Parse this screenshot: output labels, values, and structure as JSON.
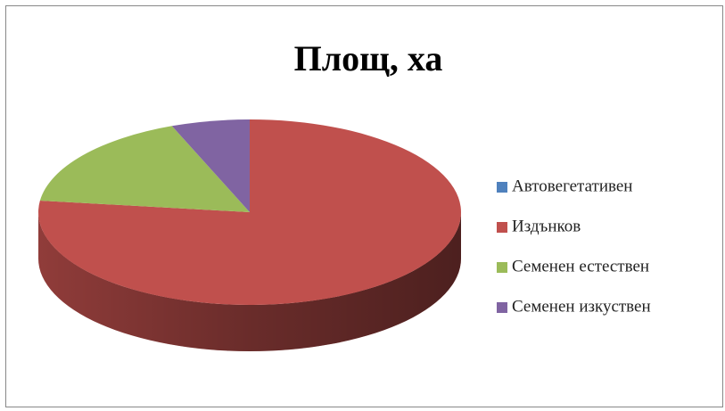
{
  "chart_data": {
    "type": "pie3d",
    "title": "Площ, ха",
    "categories": [
      "Автовегетативен",
      "Издънков",
      "Семенен естествен",
      "Семенен изкуствен"
    ],
    "values": [
      0,
      77,
      17,
      6
    ],
    "colors": [
      "#4f81bd",
      "#c0504d",
      "#9bbb59",
      "#8064a2"
    ],
    "legend": "right"
  }
}
